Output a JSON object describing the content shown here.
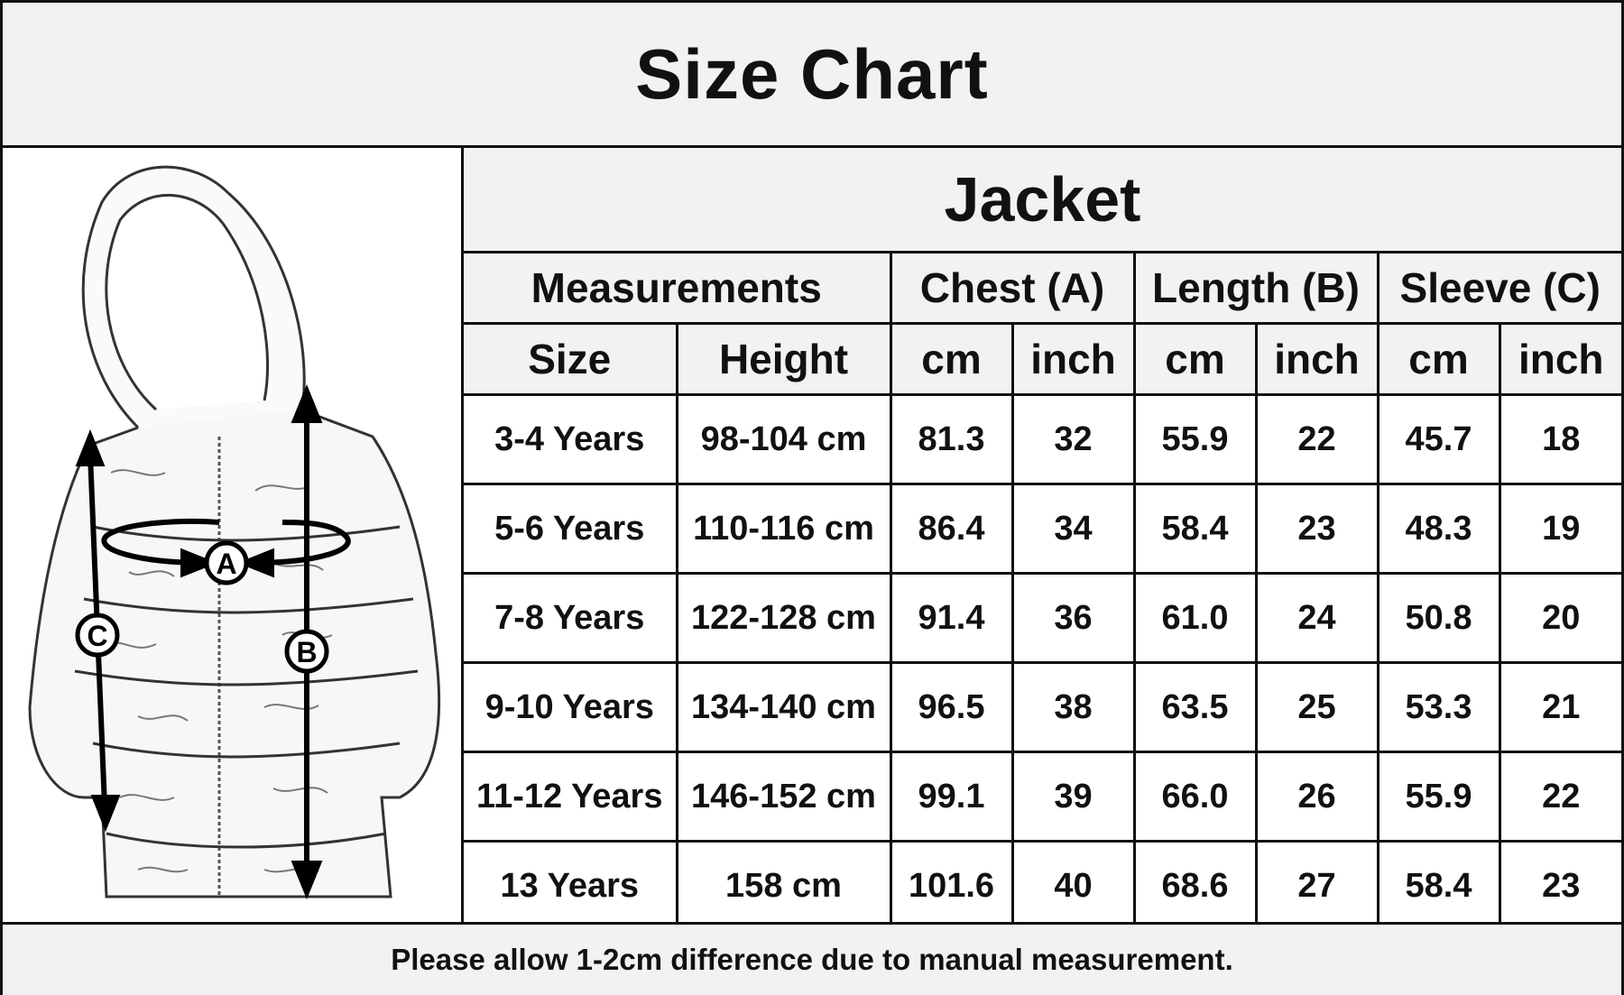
{
  "title": "Size Chart",
  "product": "Jacket",
  "diagram_labels": {
    "chest": "A",
    "length": "B",
    "sleeve": "C"
  },
  "header": {
    "measurements": "Measurements",
    "chest": "Chest (A)",
    "length": "Length (B)",
    "sleeve": "Sleeve (C)",
    "size": "Size",
    "height": "Height",
    "units": [
      "cm",
      "inch",
      "cm",
      "inch",
      "cm",
      "inch"
    ]
  },
  "rows": [
    [
      "3-4 Years",
      "98-104 cm",
      "81.3",
      "32",
      "55.9",
      "22",
      "45.7",
      "18"
    ],
    [
      "5-6 Years",
      "110-116 cm",
      "86.4",
      "34",
      "58.4",
      "23",
      "48.3",
      "19"
    ],
    [
      "7-8 Years",
      "122-128 cm",
      "91.4",
      "36",
      "61.0",
      "24",
      "50.8",
      "20"
    ],
    [
      "9-10 Years",
      "134-140 cm",
      "96.5",
      "38",
      "63.5",
      "25",
      "53.3",
      "21"
    ],
    [
      "11-12 Years",
      "146-152 cm",
      "99.1",
      "39",
      "66.0",
      "26",
      "55.9",
      "22"
    ],
    [
      "13 Years",
      "158 cm",
      "101.6",
      "40",
      "68.6",
      "27",
      "58.4",
      "23"
    ]
  ],
  "footer": "Please allow 1-2cm difference due to manual measurement."
}
